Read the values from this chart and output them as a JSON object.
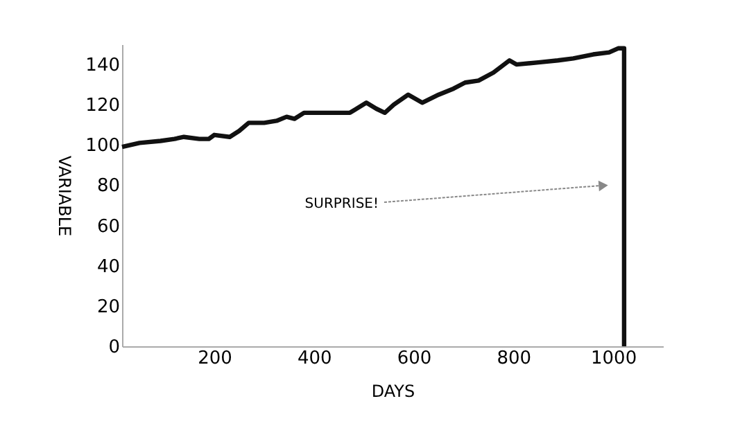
{
  "chart_data": {
    "type": "line",
    "xlabel": "DAYS",
    "ylabel": "VARIABLE",
    "x": [
      15,
      50,
      92,
      120,
      139,
      170,
      189,
      200,
      231,
      250,
      269,
      300,
      325,
      345,
      361,
      380,
      417,
      450,
      472,
      505,
      525,
      542,
      560,
      589,
      617,
      650,
      680,
      703,
      730,
      760,
      792,
      806,
      850,
      889,
      920,
      960,
      992,
      1010,
      1022,
      1022
    ],
    "series": [
      {
        "color": "#111111",
        "values": [
          99,
          101,
          102,
          103,
          104,
          103,
          103,
          105,
          104,
          107,
          111,
          111,
          112,
          114,
          113,
          116,
          116,
          116,
          116,
          121,
          118,
          116,
          120,
          125,
          121,
          125,
          128,
          131,
          132,
          136,
          142,
          140,
          141,
          142,
          143,
          145,
          146,
          148,
          148,
          0
        ]
      }
    ],
    "xlim": [
      15,
      1100
    ],
    "ylim": [
      0,
      150
    ],
    "xticks": [
      200,
      400,
      600,
      800,
      1000
    ],
    "yticks": [
      0,
      20,
      40,
      60,
      80,
      100,
      120,
      140
    ],
    "annotations": [
      "SURPRISE!"
    ],
    "grid": false,
    "marker": "none",
    "line_style": "solid"
  }
}
